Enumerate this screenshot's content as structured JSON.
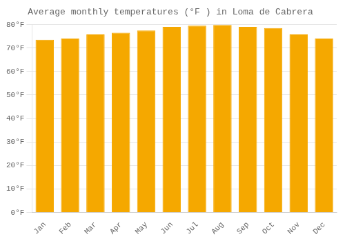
{
  "chart_data": {
    "type": "bar",
    "title": "Average monthly temperatures (°F ) in Loma de Cabrera",
    "categories": [
      "Jan",
      "Feb",
      "Mar",
      "Apr",
      "May",
      "Jun",
      "Jul",
      "Aug",
      "Sep",
      "Oct",
      "Nov",
      "Dec"
    ],
    "values": [
      73.5,
      74.0,
      75.8,
      76.5,
      77.5,
      79.0,
      79.5,
      79.8,
      79.0,
      78.5,
      75.8,
      74.0
    ],
    "color": "#F5A800",
    "ylim": [
      0,
      80
    ],
    "yticks": [
      {
        "value": 0,
        "label": "0°F"
      },
      {
        "value": 10,
        "label": "10°F"
      },
      {
        "value": 20,
        "label": "20°F"
      },
      {
        "value": 30,
        "label": "30°F"
      },
      {
        "value": 40,
        "label": "40°F"
      },
      {
        "value": 50,
        "label": "50°F"
      },
      {
        "value": 60,
        "label": "60°F"
      },
      {
        "value": 70,
        "label": "70°F"
      },
      {
        "value": 80,
        "label": "80°F"
      }
    ],
    "grid": true
  }
}
